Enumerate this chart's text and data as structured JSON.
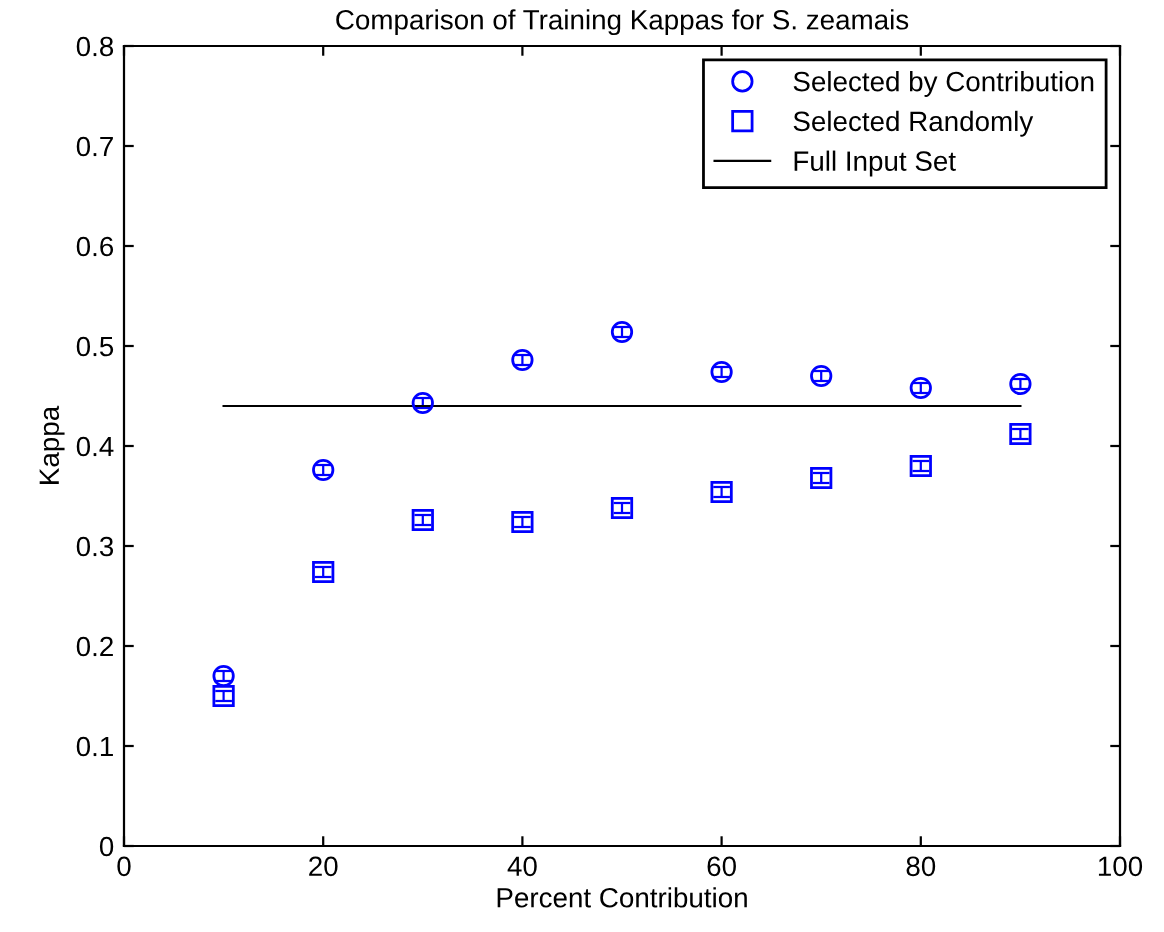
{
  "chart_data": {
    "type": "scatter",
    "title": "Comparison of Training Kappas for S. zeamais",
    "xlabel": "Percent Contribution",
    "ylabel": "Kappa",
    "x": [
      10,
      20,
      30,
      40,
      50,
      60,
      70,
      80,
      90
    ],
    "series": [
      {
        "name": "Selected by Contribution",
        "color": "#0000ff",
        "marker": "circle",
        "values": [
          0.17,
          0.376,
          0.443,
          0.486,
          0.514,
          0.474,
          0.47,
          0.458,
          0.462
        ],
        "errors": [
          0.005,
          0.005,
          0.005,
          0.005,
          0.005,
          0.005,
          0.005,
          0.005,
          0.005
        ]
      },
      {
        "name": "Selected Randomly",
        "color": "#0000ff",
        "marker": "square",
        "values": [
          0.15,
          0.274,
          0.326,
          0.324,
          0.338,
          0.354,
          0.368,
          0.38,
          0.412
        ],
        "errors": [
          0.005,
          0.005,
          0.005,
          0.005,
          0.005,
          0.005,
          0.005,
          0.005,
          0.005
        ]
      },
      {
        "name": "Full Input Set",
        "color": "#000000",
        "type": "line",
        "x": [
          10,
          90
        ],
        "values": [
          0.44,
          0.44
        ]
      }
    ],
    "xlim": [
      0,
      100
    ],
    "xticks": [
      0,
      20,
      40,
      60,
      80,
      100
    ],
    "ylim": [
      0,
      0.8
    ],
    "yticks": [
      0,
      0.1,
      0.2,
      0.3,
      0.4,
      0.5,
      0.6,
      0.7,
      0.8
    ],
    "grid": false,
    "legend": "top right"
  }
}
